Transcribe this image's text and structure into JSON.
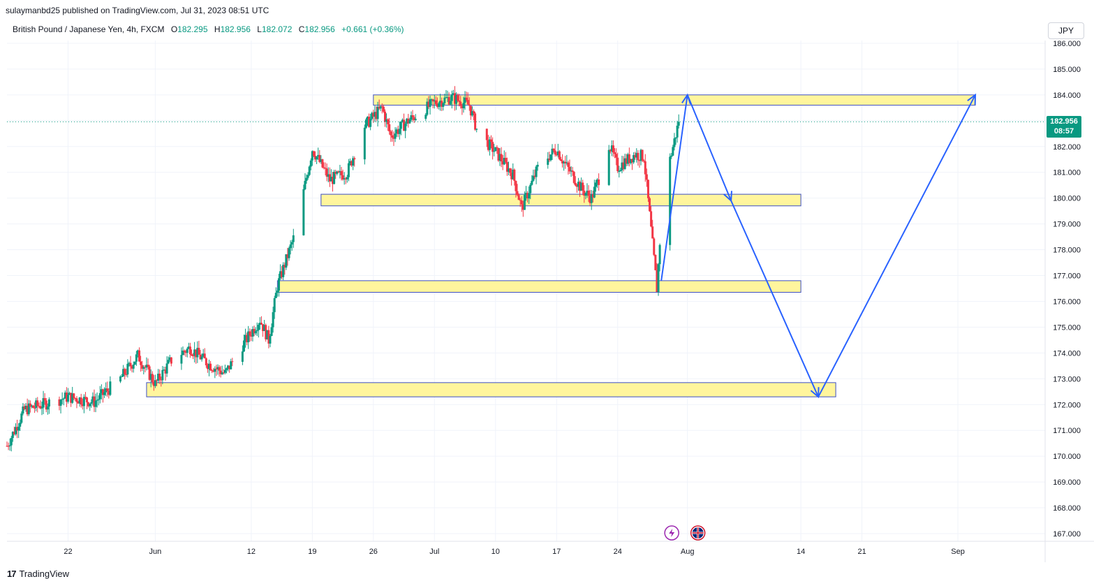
{
  "header": {
    "published": "sulaymanbd25 published on TradingView.com, Jul 31, 2023 08:51 UTC"
  },
  "legend": {
    "symbol": "British Pound / Japanese Yen, 4h, FXCM",
    "open_label": "O",
    "open": "182.295",
    "high_label": "H",
    "high": "182.956",
    "low_label": "L",
    "low": "182.072",
    "close_label": "C",
    "close": "182.956",
    "change": "+0.661 (+0.36%)"
  },
  "currency_button": "JPY",
  "last_price": {
    "price": "182.956",
    "countdown": "08:57"
  },
  "footer": {
    "brand": "TradingView",
    "mark": "17"
  },
  "colors": {
    "up": "#089981",
    "down": "#f23645",
    "zone_fill": "#fff59d",
    "zone_stroke": "#3d4fc4",
    "arrow": "#2962ff",
    "grid": "#f0f3fa",
    "last_price_line": "#089981"
  },
  "events": [
    {
      "icon": "lightning-icon",
      "date": "2023-07-31",
      "color": "#9c27b0"
    },
    {
      "icon": "uk-flag-icon",
      "date": "2023-08-03",
      "color": "#cf142b"
    }
  ],
  "chart_data": {
    "type": "candlestick",
    "timeframe": "4h",
    "y_axis": {
      "min": 166.7,
      "max": 186.0,
      "ticks": [
        "167.000",
        "168.000",
        "169.000",
        "170.000",
        "171.000",
        "172.000",
        "173.000",
        "174.000",
        "175.000",
        "176.000",
        "177.000",
        "178.000",
        "179.000",
        "180.000",
        "181.000",
        "182.000",
        "183.000",
        "184.000",
        "185.000",
        "186.000"
      ]
    },
    "x_axis": {
      "ticks": [
        {
          "label": "22",
          "date": "2023-05-22"
        },
        {
          "label": "Jun",
          "date": "2023-06-01"
        },
        {
          "label": "12",
          "date": "2023-06-12"
        },
        {
          "label": "19",
          "date": "2023-06-19"
        },
        {
          "label": "26",
          "date": "2023-06-26"
        },
        {
          "label": "Jul",
          "date": "2023-07-03"
        },
        {
          "label": "10",
          "date": "2023-07-10"
        },
        {
          "label": "17",
          "date": "2023-07-17"
        },
        {
          "label": "24",
          "date": "2023-07-24"
        },
        {
          "label": "Aug",
          "date": "2023-08-01"
        },
        {
          "label": "14",
          "date": "2023-08-14"
        },
        {
          "label": "21",
          "date": "2023-08-21"
        },
        {
          "label": "Sep",
          "date": "2023-09-01"
        }
      ]
    },
    "price_path": [
      [
        "2023-05-15",
        170.4
      ],
      [
        "2023-05-17",
        171.8
      ],
      [
        "2023-05-19",
        172.0
      ],
      [
        "2023-05-22",
        172.3
      ],
      [
        "2023-05-25",
        172.1
      ],
      [
        "2023-05-28",
        173.0
      ],
      [
        "2023-05-30",
        173.9
      ],
      [
        "2023-06-01",
        172.8
      ],
      [
        "2023-06-03",
        173.8
      ],
      [
        "2023-06-05",
        174.2
      ],
      [
        "2023-06-07",
        173.6
      ],
      [
        "2023-06-09",
        173.2
      ],
      [
        "2023-06-11",
        174.3
      ],
      [
        "2023-06-13",
        175.3
      ],
      [
        "2023-06-14",
        174.5
      ],
      [
        "2023-06-15",
        176.6
      ],
      [
        "2023-06-17",
        178.6
      ],
      [
        "2023-06-19",
        181.9
      ],
      [
        "2023-06-21",
        180.7
      ],
      [
        "2023-06-23",
        181.0
      ],
      [
        "2023-06-25",
        182.8
      ],
      [
        "2023-06-27",
        183.5
      ],
      [
        "2023-06-28",
        182.4
      ],
      [
        "2023-06-30",
        183.0
      ],
      [
        "2023-07-03",
        183.7
      ],
      [
        "2023-07-05",
        183.9
      ],
      [
        "2023-07-07",
        183.6
      ],
      [
        "2023-07-08",
        182.5
      ],
      [
        "2023-07-10",
        181.8
      ],
      [
        "2023-07-12",
        180.9
      ],
      [
        "2023-07-13",
        179.6
      ],
      [
        "2023-07-15",
        181.3
      ],
      [
        "2023-07-17",
        181.9
      ],
      [
        "2023-07-18",
        181.3
      ],
      [
        "2023-07-20",
        180.3
      ],
      [
        "2023-07-21",
        180.0
      ],
      [
        "2023-07-22",
        180.9
      ],
      [
        "2023-07-23",
        182.1
      ],
      [
        "2023-07-24",
        181.2
      ],
      [
        "2023-07-26",
        181.7
      ],
      [
        "2023-07-27",
        181.6
      ],
      [
        "2023-07-28",
        178.2
      ],
      [
        "2023-07-28T12",
        176.5
      ],
      [
        "2023-07-29",
        179.2
      ],
      [
        "2023-07-30",
        181.5
      ],
      [
        "2023-07-31",
        182.956
      ]
    ],
    "last_price": 182.956,
    "zones": [
      {
        "from": "2023-06-26",
        "to": "2023-09-03",
        "low": 183.6,
        "high": 184.0
      },
      {
        "from": "2023-06-20",
        "to": "2023-08-14",
        "low": 179.7,
        "high": 180.15
      },
      {
        "from": "2023-06-15",
        "to": "2023-08-14",
        "low": 176.35,
        "high": 176.8
      },
      {
        "from": "2023-05-31",
        "to": "2023-08-18",
        "low": 172.3,
        "high": 172.85
      }
    ],
    "projection_path": [
      [
        "2023-07-29",
        176.8
      ],
      [
        "2023-08-01",
        184.0
      ],
      [
        "2023-08-06",
        179.9
      ],
      [
        "2023-08-16",
        172.3
      ],
      [
        "2023-09-03",
        184.0
      ]
    ]
  }
}
